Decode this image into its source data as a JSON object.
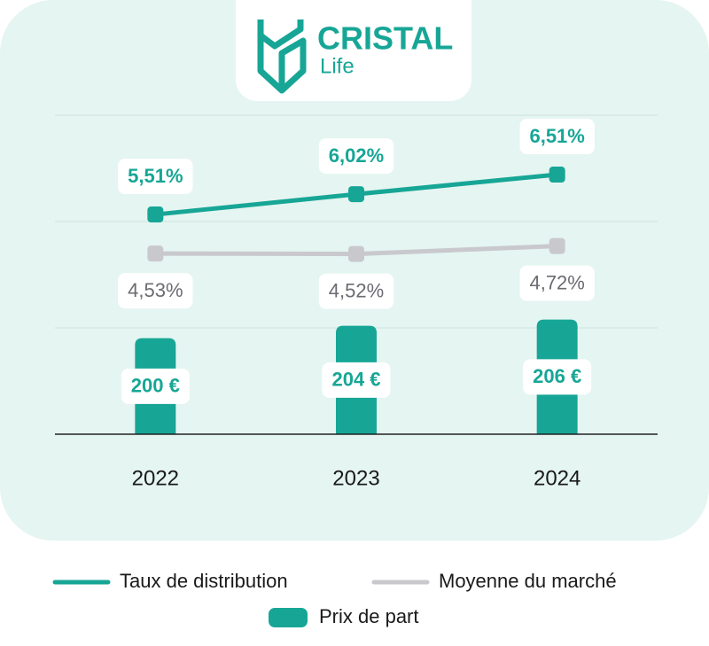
{
  "logo": {
    "name": "CRISTAL",
    "tagline": "Life"
  },
  "chart_data": {
    "type": "combo",
    "categories": [
      "2022",
      "2023",
      "2024"
    ],
    "series": [
      {
        "name": "Taux de distribution",
        "type": "line",
        "axis": "y2",
        "color": "#17a696",
        "values": [
          5.51,
          6.02,
          6.51
        ],
        "value_labels": [
          "5,51%",
          "6,02%",
          "6,51%"
        ]
      },
      {
        "name": "Moyenne du marché",
        "type": "line",
        "axis": "y2",
        "color": "#c9c9cd",
        "values": [
          4.53,
          4.52,
          4.72
        ],
        "value_labels": [
          "4,53%",
          "4,52%",
          "4,72%"
        ]
      },
      {
        "name": "Prix de part",
        "type": "bar",
        "color": "#17a696",
        "values": [
          200,
          204,
          206
        ],
        "value_labels": [
          "200 €",
          "204 €",
          "206 €"
        ]
      }
    ],
    "ylim": [
      169,
      272
    ],
    "y2lim": [
      0,
      8
    ],
    "grid": true
  }
}
